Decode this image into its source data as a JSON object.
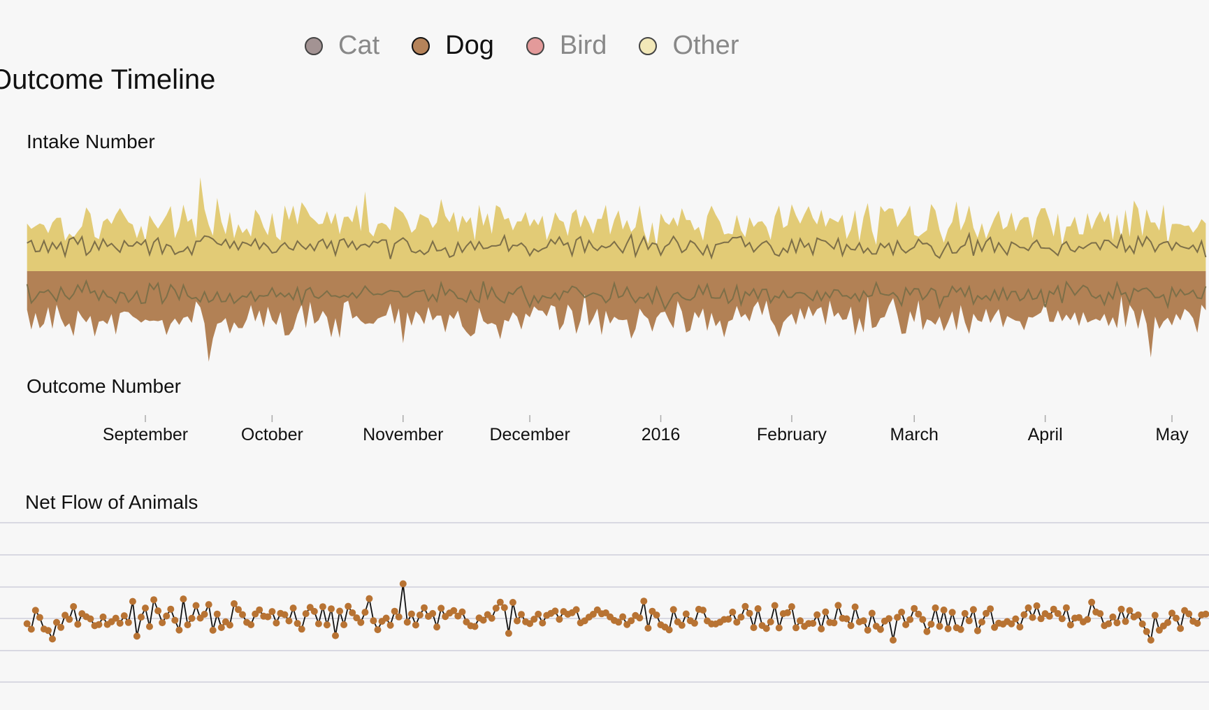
{
  "title": "Outcome Timeline",
  "legend": {
    "items": [
      {
        "label": "Cat",
        "color": "#a39393",
        "active": false
      },
      {
        "label": "Dog",
        "color": "#b5835a",
        "active": true
      },
      {
        "label": "Bird",
        "color": "#e39a9a",
        "active": false
      },
      {
        "label": "Other",
        "color": "#f2e8b8",
        "active": false
      }
    ]
  },
  "colors": {
    "intake_fill": "#e2cb76",
    "outcome_fill": "#b28155",
    "inner_line": "#7d6f48",
    "net_point": "#b87333",
    "net_line": "#111111",
    "gridline": "#cfcfdc"
  },
  "chart_data": [
    {
      "type": "area",
      "title": "",
      "upper_label": "Intake Number",
      "lower_label": "Outcome Number",
      "x_range": [
        "2015-08-01",
        "2016-05-31"
      ],
      "x_ticks": [
        {
          "label": "September",
          "date": "2015-09-01"
        },
        {
          "label": "October",
          "date": "2015-10-01"
        },
        {
          "label": "November",
          "date": "2015-11-01"
        },
        {
          "label": "December",
          "date": "2015-12-01"
        },
        {
          "label": "2016",
          "date": "2016-01-01"
        },
        {
          "label": "February",
          "date": "2016-02-01"
        },
        {
          "label": "March",
          "date": "2016-03-01"
        },
        {
          "label": "April",
          "date": "2016-04-01"
        },
        {
          "label": "May",
          "date": "2016-05-01"
        }
      ],
      "series": [
        {
          "name": "Other",
          "side": "intake",
          "seed": 17,
          "mean": 58,
          "spread": 18,
          "spikes": [
            [
              "2015-09-14",
              112
            ],
            [
              "2015-10-23",
              95
            ],
            [
              "2015-11-10",
              86
            ],
            [
              "2016-03-05",
              80
            ],
            [
              "2016-05-23",
              118
            ]
          ]
        },
        {
          "name": "Dog",
          "side": "intake",
          "seed": 29,
          "mean": 30,
          "spread": 9,
          "spikes": []
        },
        {
          "name": "Dog",
          "side": "outcome",
          "seed": 43,
          "mean": 28,
          "spread": 10,
          "spikes": []
        },
        {
          "name": "Other",
          "side": "outcome",
          "seed": 61,
          "mean": 56,
          "spread": 18,
          "spikes": [
            [
              "2015-09-16",
              108
            ],
            [
              "2015-11-01",
              86
            ],
            [
              "2016-04-26",
              103
            ]
          ]
        }
      ]
    },
    {
      "type": "scatter",
      "title": "Net Flow of Animals",
      "gridlines": true,
      "y_range": [
        -20,
        20
      ],
      "series": [
        {
          "name": "Dog",
          "seed": 97,
          "mean": 0,
          "spread": 5,
          "spikes": [
            [
              "2015-11-01",
              16
            ],
            [
              "2015-09-10",
              9
            ],
            [
              "2015-12-28",
              8
            ],
            [
              "2016-02-25",
              -10
            ],
            [
              "2016-04-26",
              -10
            ]
          ]
        }
      ]
    }
  ]
}
